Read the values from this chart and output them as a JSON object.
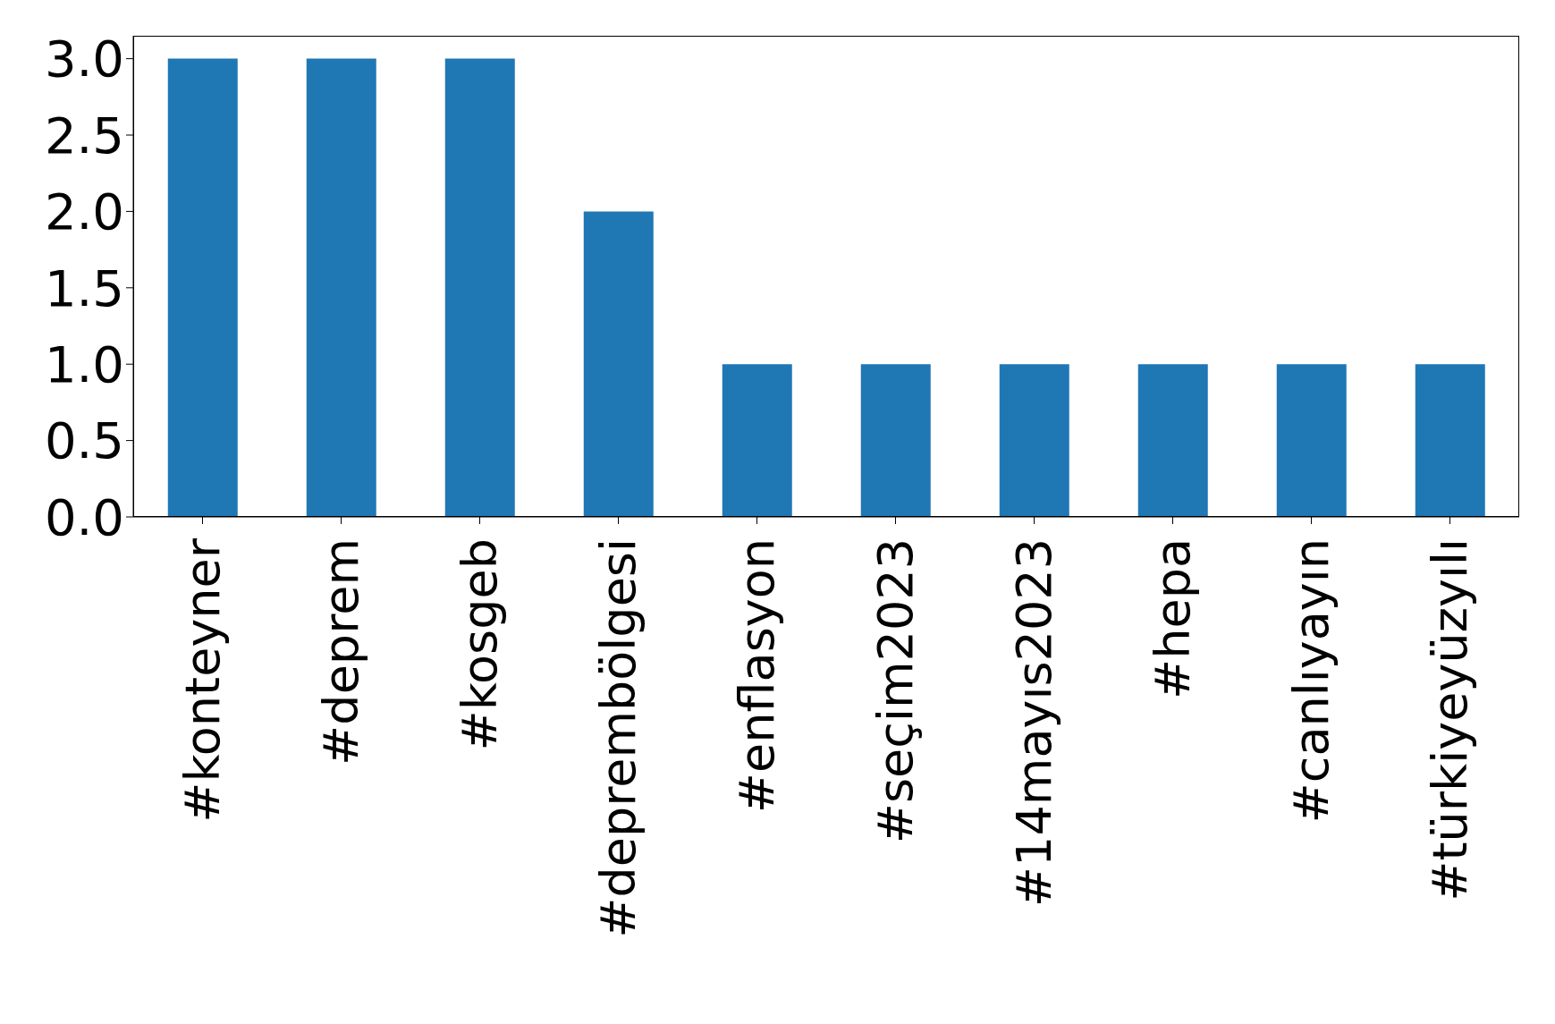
{
  "chart_data": {
    "type": "bar",
    "categories": [
      "#konteyner",
      "#deprem",
      "#kosgeb",
      "#deprembölgesi",
      "#enflasyon",
      "#seçim2023",
      "#14mayıs2023",
      "#hepa",
      "#canlıyayın",
      "#türkiyeyüzyılı"
    ],
    "values": [
      3,
      3,
      3,
      2,
      1,
      1,
      1,
      1,
      1,
      1
    ],
    "color": "#1f77b4",
    "ylim": [
      0,
      3.15
    ],
    "yticks": [
      {
        "value": 0,
        "label": "0.0"
      },
      {
        "value": 0.5,
        "label": "0.5"
      },
      {
        "value": 1,
        "label": "1.0"
      },
      {
        "value": 1.5,
        "label": "1.5"
      },
      {
        "value": 2,
        "label": "2.0"
      },
      {
        "value": 2.5,
        "label": "2.5"
      },
      {
        "value": 3,
        "label": "3.0"
      }
    ],
    "grid": false,
    "legend": false
  }
}
